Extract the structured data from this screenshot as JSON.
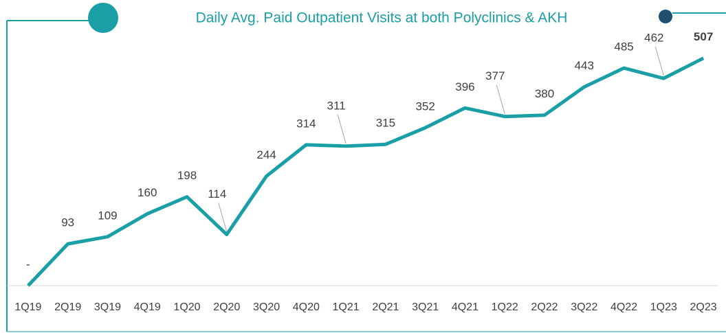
{
  "chart_data": {
    "type": "line",
    "title": "Daily Avg. Paid Outpatient Visits at both Polyclinics & AKH",
    "categories": [
      "1Q19",
      "2Q19",
      "3Q19",
      "4Q19",
      "1Q20",
      "2Q20",
      "3Q20",
      "4Q20",
      "1Q21",
      "2Q21",
      "3Q21",
      "4Q21",
      "1Q22",
      "2Q22",
      "3Q22",
      "4Q22",
      "1Q23",
      "2Q23"
    ],
    "series": [
      {
        "name": "Daily Avg. Paid Outpatient Visits",
        "color": "#1a9fa6",
        "values": [
          0,
          93,
          109,
          160,
          198,
          114,
          244,
          314,
          311,
          315,
          352,
          396,
          377,
          380,
          443,
          485,
          462,
          507
        ],
        "value_labels": [
          "-",
          "93",
          "109",
          "160",
          "198",
          "114",
          "244",
          "314",
          "311",
          "315",
          "352",
          "396",
          "377",
          "380",
          "443",
          "485",
          "462",
          "507"
        ]
      }
    ],
    "ylim": [
      0,
      600
    ]
  }
}
